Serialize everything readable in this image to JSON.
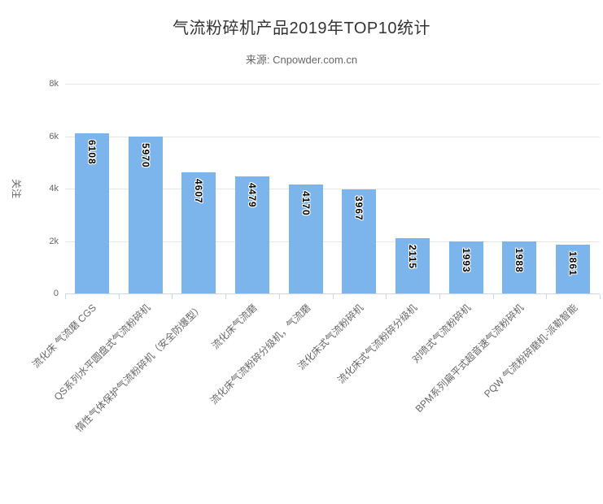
{
  "chart_data": {
    "type": "bar",
    "title": "气流粉碎机产品2019年TOP10统计",
    "subtitle": "来源: Cnpowder.com.cn",
    "xlabel": "",
    "ylabel": "关注",
    "ylim": [
      0,
      8000
    ],
    "yticks": [
      0,
      2000,
      4000,
      6000,
      8000
    ],
    "ytick_labels": [
      "0",
      "2k",
      "4k",
      "6k",
      "8k"
    ],
    "grid": true,
    "legend_position": "none",
    "categories": [
      "流化床 气流磨 CGS",
      "QS系列水平圆盘式气流粉碎机",
      "惰性气体保护气流粉碎机（安全防爆型）",
      "流化床气流磨",
      "流化床气流粉碎分级机，气流磨",
      "流化床式气流粉碎机",
      "流化床式气流粉碎分级机",
      "对喷式气流粉碎机",
      "BPM系列扁平式超音速气流粉碎机",
      "PQW 气流粉碎磨机-派勒智能"
    ],
    "values": [
      6108,
      5970,
      4607,
      4479,
      4170,
      3967,
      2115,
      1993,
      1988,
      1861
    ],
    "value_labels": [
      "6108",
      "5970",
      "4607",
      "4479",
      "4170",
      "3967",
      "2115",
      "1993",
      "1988",
      "1861"
    ],
    "x_label_rotation_deg": -45,
    "value_label_rotation_deg": 90
  },
  "colors": {
    "bar_fill": "#7cb5ec",
    "gridline": "#e6e6e6",
    "axis_line": "#ccd6eb",
    "title_text": "#333333",
    "subtitle_text": "#666666",
    "axis_label_text": "#666666",
    "value_label_text": "#000000",
    "background": "#ffffff"
  }
}
